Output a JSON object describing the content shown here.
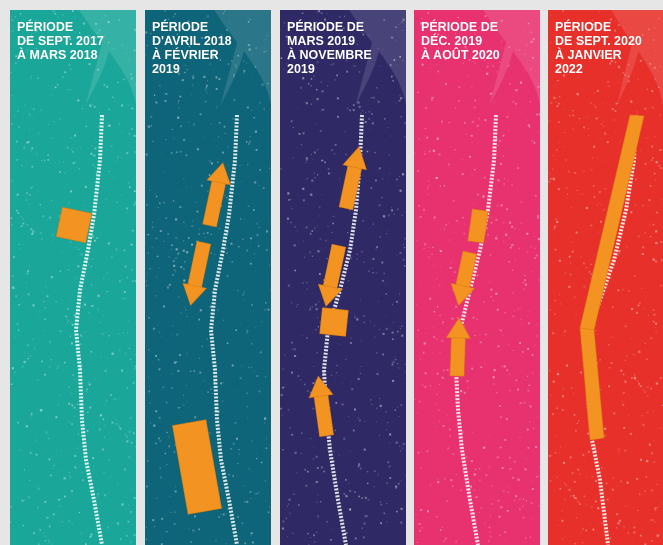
{
  "panels": [
    {
      "id": "p1",
      "lines": [
        "PÉRIODE",
        "DE SEPT. 2017",
        "À MARS 2018"
      ],
      "background": "#1aa79a"
    },
    {
      "id": "p2",
      "lines": [
        "PÉRIODE",
        "D'AVRIL 2018",
        "À FÉVRIER",
        "2019"
      ],
      "background": "#0e6478"
    },
    {
      "id": "p3",
      "lines": [
        "PÉRIODE DE",
        "MARS 2019",
        "À NOVEMBRE",
        "2019"
      ],
      "background": "#2f2a66"
    },
    {
      "id": "p4",
      "lines": [
        "PÉRIODE DE",
        "DÉC. 2019",
        "À AOÛT 2020"
      ],
      "background": "#e8326f"
    },
    {
      "id": "p5",
      "lines": [
        "PÉRIODE",
        "DE SEPT. 2020",
        "À JANVIER",
        "2022"
      ],
      "background": "#e7302a"
    }
  ],
  "accent_color": "#f39422",
  "track_color": "#ffffff"
}
